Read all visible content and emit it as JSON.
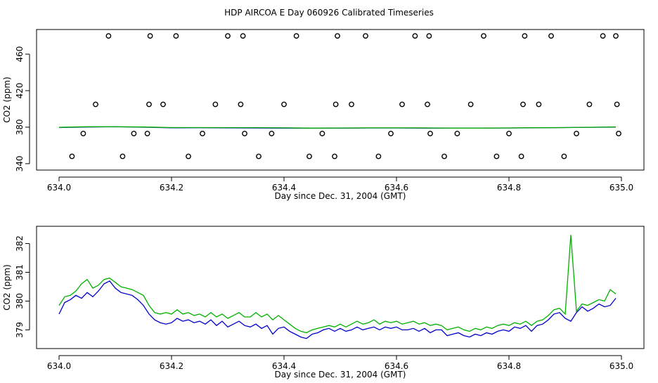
{
  "page": {
    "title": "HDP AIRCOA E  Day 060926  Calibrated Timeseries"
  },
  "chart_data": [
    {
      "type": "scatter",
      "xlabel": "Day since Dec. 31, 2004 (GMT)",
      "ylabel": "CO2 (ppm)",
      "xlim": [
        633.96,
        635.04
      ],
      "ylim": [
        333,
        487
      ],
      "xticks": [
        634.0,
        634.2,
        634.4,
        634.6,
        634.8,
        635.0
      ],
      "xtick_labels": [
        "634.0",
        "634.2",
        "634.4",
        "634.6",
        "634.8",
        "635.0"
      ],
      "yticks": [
        340,
        380,
        420,
        460
      ],
      "ytick_labels": [
        "340",
        "380",
        "420",
        "460"
      ],
      "grid": false,
      "colors": {
        "series_a": "#0000cc",
        "series_b": "#00b000",
        "calibration_points": "#000000"
      },
      "series": [
        {
          "x": [
            634.0,
            634.05,
            634.1,
            634.15,
            634.2,
            634.25,
            634.3,
            634.35,
            634.4,
            634.45,
            634.5,
            634.55,
            634.6,
            634.65,
            634.7,
            634.75,
            634.8,
            634.85,
            634.9,
            634.95,
            634.99
          ],
          "y": [
            379.6,
            380.2,
            380.4,
            380.0,
            379.3,
            379.4,
            379.2,
            379.1,
            378.9,
            378.8,
            379.0,
            379.1,
            379.1,
            379.0,
            378.9,
            378.9,
            379.1,
            379.3,
            379.6,
            379.9,
            380.1
          ]
        },
        {
          "x": [
            634.0,
            634.05,
            634.1,
            634.15,
            634.2,
            634.25,
            634.3,
            634.35,
            634.4,
            634.45,
            634.5,
            634.55,
            634.6,
            634.65,
            634.7,
            634.75,
            634.8,
            634.85,
            634.9,
            634.95,
            634.99
          ],
          "y": [
            379.8,
            380.5,
            380.5,
            380.2,
            379.6,
            379.6,
            379.5,
            379.5,
            379.3,
            379.0,
            379.1,
            379.3,
            379.3,
            379.2,
            379.0,
            379.0,
            379.2,
            379.4,
            379.6,
            380.0,
            380.3
          ]
        },
        {
          "x": [
            634.023,
            634.043,
            634.065,
            634.088,
            634.113,
            634.133,
            634.157,
            634.16,
            634.162,
            634.185,
            634.208,
            634.23,
            634.255,
            634.278,
            634.3,
            634.323,
            634.327,
            634.33,
            634.355,
            634.378,
            634.4,
            634.422,
            634.445,
            634.468,
            634.49,
            634.492,
            634.495,
            634.52,
            634.545,
            634.568,
            634.59,
            634.61,
            634.633,
            634.655,
            634.658,
            634.66,
            634.685,
            634.708,
            634.732,
            634.755,
            634.778,
            634.8,
            634.822,
            634.825,
            634.828,
            634.853,
            634.875,
            634.898,
            634.92,
            634.943,
            634.967,
            634.99,
            634.992,
            634.995
          ],
          "y": [
            348,
            373,
            405,
            480,
            348,
            373,
            373,
            405,
            480,
            405,
            480,
            348,
            373,
            405,
            480,
            405,
            480,
            373,
            348,
            373,
            405,
            480,
            348,
            373,
            348,
            405,
            480,
            405,
            480,
            348,
            373,
            405,
            480,
            405,
            480,
            373,
            348,
            373,
            405,
            480,
            348,
            373,
            348,
            405,
            480,
            405,
            480,
            348,
            373,
            405,
            480,
            480,
            405,
            373
          ]
        }
      ]
    },
    {
      "type": "line",
      "xlabel": "Day since Dec. 31, 2004 (GMT)",
      "ylabel": "CO2 (ppm)",
      "xlim": [
        633.96,
        635.04
      ],
      "ylim": [
        378.35,
        382.6
      ],
      "xticks": [
        634.0,
        634.2,
        634.4,
        634.6,
        634.8,
        635.0
      ],
      "xtick_labels": [
        "634.0",
        "634.2",
        "634.4",
        "634.6",
        "634.8",
        "635.0"
      ],
      "yticks": [
        379,
        380,
        381,
        382
      ],
      "ytick_labels": [
        "379",
        "380",
        "381",
        "382"
      ],
      "grid": false,
      "colors": {
        "series_a": "#0000cc",
        "series_b": "#00b000"
      },
      "series": [
        {
          "x": [
            634.0,
            634.01,
            634.02,
            634.03,
            634.04,
            634.05,
            634.06,
            634.07,
            634.08,
            634.09,
            634.1,
            634.11,
            634.12,
            634.13,
            634.14,
            634.15,
            634.16,
            634.17,
            634.18,
            634.19,
            634.2,
            634.21,
            634.22,
            634.23,
            634.24,
            634.25,
            634.26,
            634.27,
            634.28,
            634.29,
            634.3,
            634.31,
            634.32,
            634.33,
            634.34,
            634.35,
            634.36,
            634.37,
            634.38,
            634.39,
            634.4,
            634.41,
            634.42,
            634.43,
            634.44,
            634.45,
            634.46,
            634.47,
            634.48,
            634.49,
            634.5,
            634.51,
            634.52,
            634.53,
            634.54,
            634.55,
            634.56,
            634.57,
            634.58,
            634.59,
            634.6,
            634.61,
            634.62,
            634.63,
            634.64,
            634.65,
            634.66,
            634.67,
            634.68,
            634.69,
            634.7,
            634.71,
            634.72,
            634.73,
            634.74,
            634.75,
            634.76,
            634.77,
            634.78,
            634.79,
            634.8,
            634.81,
            634.82,
            634.83,
            634.84,
            634.85,
            634.86,
            634.87,
            634.88,
            634.89,
            634.9,
            634.91,
            634.92,
            634.93,
            634.94,
            634.95,
            634.96,
            634.97,
            634.98,
            634.99
          ],
          "y": [
            379.55,
            379.95,
            380.05,
            380.2,
            380.1,
            380.3,
            380.15,
            380.35,
            380.6,
            380.7,
            380.45,
            380.3,
            380.25,
            380.2,
            380.05,
            379.85,
            379.55,
            379.35,
            379.25,
            379.2,
            379.25,
            379.4,
            379.3,
            379.35,
            379.25,
            379.3,
            379.2,
            379.35,
            379.15,
            379.3,
            379.1,
            379.2,
            379.3,
            379.15,
            379.1,
            379.2,
            379.05,
            379.15,
            378.85,
            379.05,
            379.1,
            378.95,
            378.85,
            378.75,
            378.7,
            378.85,
            378.9,
            379.0,
            379.05,
            378.95,
            379.05,
            378.95,
            379.0,
            379.1,
            379.0,
            379.05,
            379.1,
            379.0,
            379.1,
            379.05,
            379.1,
            379.0,
            379.0,
            379.05,
            378.95,
            379.05,
            378.9,
            379.0,
            379.0,
            378.8,
            378.85,
            378.9,
            378.8,
            378.75,
            378.85,
            378.8,
            378.9,
            378.85,
            378.95,
            379.0,
            378.95,
            379.1,
            379.05,
            379.15,
            378.95,
            379.15,
            379.2,
            379.35,
            379.55,
            379.6,
            379.4,
            379.3,
            379.6,
            379.8,
            379.65,
            379.75,
            379.9,
            379.8,
            379.85,
            380.1
          ]
        },
        {
          "x": [
            634.0,
            634.01,
            634.02,
            634.03,
            634.04,
            634.05,
            634.06,
            634.07,
            634.08,
            634.09,
            634.1,
            634.11,
            634.12,
            634.13,
            634.14,
            634.15,
            634.16,
            634.17,
            634.18,
            634.19,
            634.2,
            634.21,
            634.22,
            634.23,
            634.24,
            634.25,
            634.26,
            634.27,
            634.28,
            634.29,
            634.3,
            634.31,
            634.32,
            634.33,
            634.34,
            634.35,
            634.36,
            634.37,
            634.38,
            634.39,
            634.4,
            634.41,
            634.42,
            634.43,
            634.44,
            634.45,
            634.46,
            634.47,
            634.48,
            634.49,
            634.5,
            634.51,
            634.52,
            634.53,
            634.54,
            634.55,
            634.56,
            634.57,
            634.58,
            634.59,
            634.6,
            634.61,
            634.62,
            634.63,
            634.64,
            634.65,
            634.66,
            634.67,
            634.68,
            634.69,
            634.7,
            634.71,
            634.72,
            634.73,
            634.74,
            634.75,
            634.76,
            634.77,
            634.78,
            634.79,
            634.8,
            634.81,
            634.82,
            634.83,
            634.84,
            634.85,
            634.86,
            634.87,
            634.88,
            634.89,
            634.9,
            634.91,
            634.92,
            634.93,
            634.94,
            634.95,
            634.96,
            634.97,
            634.98,
            634.99
          ],
          "y": [
            379.85,
            380.15,
            380.2,
            380.35,
            380.6,
            380.75,
            380.45,
            380.55,
            380.75,
            380.8,
            380.65,
            380.5,
            380.45,
            380.4,
            380.3,
            380.2,
            379.85,
            379.6,
            379.55,
            379.6,
            379.55,
            379.7,
            379.55,
            379.6,
            379.5,
            379.55,
            379.45,
            379.6,
            379.45,
            379.55,
            379.4,
            379.5,
            379.6,
            379.45,
            379.45,
            379.6,
            379.45,
            379.55,
            379.35,
            379.5,
            379.35,
            379.2,
            379.05,
            378.95,
            378.9,
            379.0,
            379.05,
            379.1,
            379.15,
            379.1,
            379.2,
            379.1,
            379.2,
            379.3,
            379.2,
            379.25,
            379.35,
            379.2,
            379.3,
            379.25,
            379.3,
            379.2,
            379.25,
            379.3,
            379.2,
            379.25,
            379.15,
            379.2,
            379.15,
            379.0,
            379.05,
            379.1,
            379.0,
            378.95,
            379.05,
            379.0,
            379.1,
            379.05,
            379.15,
            379.2,
            379.15,
            379.25,
            379.2,
            379.3,
            379.15,
            379.3,
            379.35,
            379.5,
            379.7,
            379.75,
            379.55,
            382.3,
            379.65,
            379.9,
            379.85,
            379.95,
            380.05,
            380.0,
            380.4,
            380.25
          ]
        }
      ]
    }
  ]
}
